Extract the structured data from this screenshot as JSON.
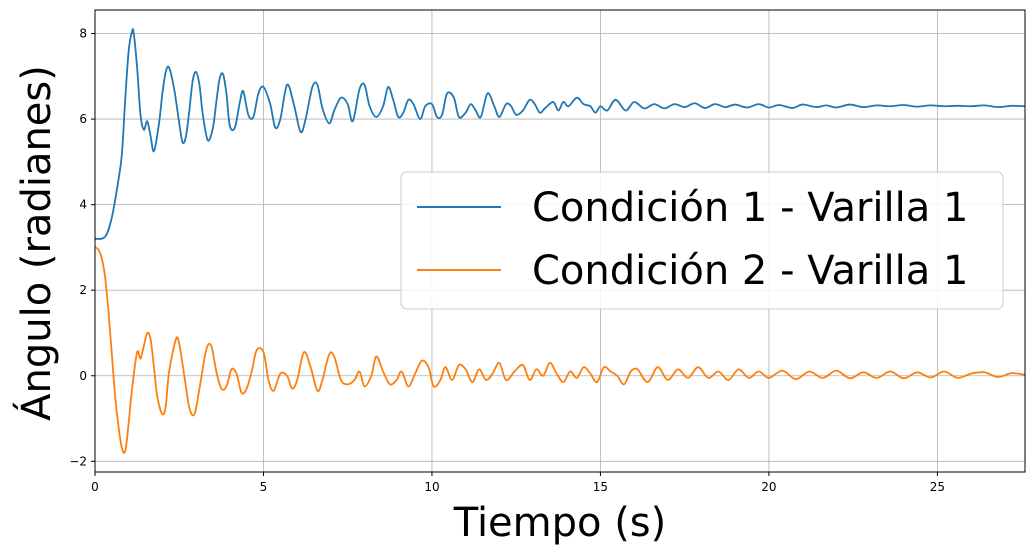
{
  "chart_data": {
    "type": "line",
    "title": "",
    "xlabel": "Tiempo (s)",
    "ylabel": "Ángulo (radianes)",
    "xlim": [
      0,
      27.6
    ],
    "ylim": [
      -2.25,
      8.55
    ],
    "x_ticks": [
      0,
      5,
      10,
      15,
      20,
      25
    ],
    "x_tick_labels": [
      "0",
      "5",
      "10",
      "15",
      "20",
      "25"
    ],
    "y_ticks": [
      -2,
      0,
      2,
      4,
      6,
      8
    ],
    "y_tick_labels": [
      "−2",
      "0",
      "2",
      "4",
      "6",
      "8"
    ],
    "grid": true,
    "legend_position": "center-right",
    "series": [
      {
        "name": "Condición 1 - Varilla 1",
        "color": "#1f77b4",
        "x": [
          0,
          0.3,
          0.5,
          0.7,
          0.8,
          0.9,
          1.0,
          1.1,
          1.15,
          1.25,
          1.35,
          1.45,
          1.55,
          1.65,
          1.75,
          1.9,
          2.0,
          2.1,
          2.2,
          2.35,
          2.5,
          2.6,
          2.7,
          2.8,
          2.9,
          3.0,
          3.1,
          3.2,
          3.35,
          3.5,
          3.6,
          3.7,
          3.8,
          3.9,
          4.0,
          4.15,
          4.3,
          4.4,
          4.55,
          4.7,
          4.85,
          5.0,
          5.2,
          5.35,
          5.5,
          5.7,
          5.9,
          6.1,
          6.25,
          6.45,
          6.6,
          6.75,
          6.95,
          7.1,
          7.3,
          7.5,
          7.65,
          7.85,
          8.0,
          8.15,
          8.35,
          8.55,
          8.7,
          8.85,
          9.0,
          9.15,
          9.3,
          9.45,
          9.65,
          9.8,
          10.0,
          10.15,
          10.3,
          10.45,
          10.65,
          10.8,
          11.0,
          11.15,
          11.3,
          11.45,
          11.65,
          11.85,
          12.0,
          12.2,
          12.35,
          12.5,
          12.7,
          12.9,
          13.05,
          13.2,
          13.35,
          13.6,
          13.75,
          13.9,
          14.05,
          14.3,
          14.5,
          14.7,
          14.85,
          15.0,
          15.2,
          15.45,
          15.75,
          16.0,
          16.3,
          16.6,
          16.9,
          17.2,
          17.5,
          17.8,
          18.1,
          18.4,
          18.7,
          19.0,
          19.35,
          19.7,
          20.0,
          20.3,
          20.7,
          21.0,
          21.4,
          21.7,
          22.0,
          22.4,
          22.8,
          23.2,
          23.6,
          24.0,
          24.4,
          24.8,
          25.2,
          25.6,
          26.0,
          26.4,
          26.8,
          27.2,
          27.6
        ],
        "y": [
          3.2,
          3.25,
          3.7,
          4.6,
          5.2,
          6.5,
          7.6,
          8.05,
          8.0,
          7.2,
          6.1,
          5.75,
          5.95,
          5.6,
          5.25,
          5.9,
          6.6,
          7.1,
          7.2,
          6.7,
          5.9,
          5.45,
          5.6,
          6.2,
          6.9,
          7.1,
          6.8,
          6.1,
          5.5,
          5.8,
          6.4,
          6.95,
          7.05,
          6.6,
          5.85,
          5.8,
          6.4,
          6.65,
          6.1,
          6.05,
          6.6,
          6.75,
          6.35,
          5.8,
          6.0,
          6.8,
          6.35,
          5.7,
          6.0,
          6.75,
          6.8,
          6.25,
          5.9,
          6.2,
          6.5,
          6.35,
          5.95,
          6.7,
          6.8,
          6.3,
          6.05,
          6.3,
          6.75,
          6.45,
          6.05,
          6.15,
          6.45,
          6.35,
          6.0,
          6.3,
          6.35,
          6.05,
          6.1,
          6.6,
          6.5,
          6.05,
          6.15,
          6.35,
          6.2,
          6.05,
          6.6,
          6.3,
          6.05,
          6.35,
          6.3,
          6.1,
          6.2,
          6.45,
          6.35,
          6.15,
          6.25,
          6.4,
          6.2,
          6.4,
          6.3,
          6.5,
          6.35,
          6.3,
          6.15,
          6.3,
          6.2,
          6.45,
          6.2,
          6.4,
          6.25,
          6.35,
          6.25,
          6.35,
          6.28,
          6.37,
          6.26,
          6.35,
          6.28,
          6.34,
          6.27,
          6.35,
          6.27,
          6.33,
          6.26,
          6.34,
          6.28,
          6.32,
          6.27,
          6.34,
          6.28,
          6.32,
          6.3,
          6.33,
          6.29,
          6.32,
          6.3,
          6.31,
          6.3,
          6.32,
          6.28,
          6.31,
          6.3
        ]
      },
      {
        "name": "Condición 2 - Varilla 1",
        "color": "#ff7f0e",
        "x": [
          0,
          0.1,
          0.2,
          0.3,
          0.4,
          0.5,
          0.6,
          0.7,
          0.8,
          0.9,
          1.0,
          1.1,
          1.25,
          1.35,
          1.45,
          1.55,
          1.65,
          1.75,
          1.85,
          2.0,
          2.1,
          2.2,
          2.4,
          2.5,
          2.65,
          2.8,
          2.95,
          3.1,
          3.3,
          3.45,
          3.6,
          3.75,
          3.9,
          4.05,
          4.2,
          4.35,
          4.5,
          4.65,
          4.8,
          5.0,
          5.15,
          5.3,
          5.5,
          5.7,
          5.85,
          6.0,
          6.2,
          6.4,
          6.6,
          6.75,
          6.95,
          7.1,
          7.3,
          7.5,
          7.7,
          7.85,
          8.0,
          8.2,
          8.35,
          8.55,
          8.75,
          8.95,
          9.1,
          9.3,
          9.5,
          9.7,
          9.9,
          10.05,
          10.25,
          10.4,
          10.6,
          10.8,
          11.0,
          11.2,
          11.4,
          11.6,
          11.8,
          12.0,
          12.2,
          12.45,
          12.7,
          12.9,
          13.1,
          13.3,
          13.5,
          13.7,
          13.9,
          14.1,
          14.3,
          14.5,
          14.7,
          14.9,
          15.1,
          15.3,
          15.5,
          15.7,
          15.9,
          16.1,
          16.4,
          16.7,
          17.0,
          17.3,
          17.6,
          17.9,
          18.2,
          18.5,
          18.8,
          19.1,
          19.4,
          19.7,
          20.0,
          20.4,
          20.8,
          21.2,
          21.6,
          22.0,
          22.4,
          22.8,
          23.2,
          23.6,
          24.0,
          24.4,
          24.8,
          25.2,
          25.6,
          26.0,
          26.4,
          26.8,
          27.2,
          27.6
        ],
        "y": [
          3.0,
          2.95,
          2.75,
          2.3,
          1.5,
          0.5,
          -0.5,
          -1.2,
          -1.7,
          -1.75,
          -1.1,
          -0.3,
          0.55,
          0.4,
          0.7,
          1.0,
          0.85,
          0.2,
          -0.5,
          -0.9,
          -0.7,
          0.1,
          0.85,
          0.75,
          0.0,
          -0.75,
          -0.9,
          -0.3,
          0.6,
          0.7,
          0.1,
          -0.3,
          -0.25,
          0.15,
          0.05,
          -0.4,
          -0.3,
          0.1,
          0.6,
          0.55,
          -0.1,
          -0.35,
          0.05,
          0.0,
          -0.3,
          -0.1,
          0.55,
          0.2,
          -0.35,
          -0.1,
          0.5,
          0.45,
          -0.1,
          -0.2,
          -0.1,
          0.1,
          -0.25,
          0.0,
          0.45,
          0.1,
          -0.2,
          -0.1,
          0.1,
          -0.25,
          0.05,
          0.35,
          0.2,
          -0.25,
          -0.1,
          0.2,
          -0.1,
          0.25,
          0.15,
          -0.15,
          0.15,
          -0.1,
          0.05,
          0.3,
          -0.1,
          0.1,
          0.25,
          -0.1,
          0.15,
          0.0,
          0.3,
          0.05,
          -0.15,
          0.1,
          -0.05,
          0.2,
          0.05,
          -0.15,
          0.2,
          0.1,
          0.0,
          -0.2,
          0.1,
          0.15,
          -0.15,
          0.2,
          -0.1,
          0.15,
          -0.05,
          0.2,
          -0.05,
          0.1,
          -0.1,
          0.15,
          -0.05,
          0.1,
          -0.05,
          0.12,
          -0.08,
          0.1,
          -0.05,
          0.12,
          -0.06,
          0.08,
          -0.05,
          0.1,
          -0.06,
          0.08,
          -0.04,
          0.1,
          -0.05,
          0.05,
          0.08,
          -0.03,
          0.06,
          0.02
        ]
      }
    ]
  }
}
